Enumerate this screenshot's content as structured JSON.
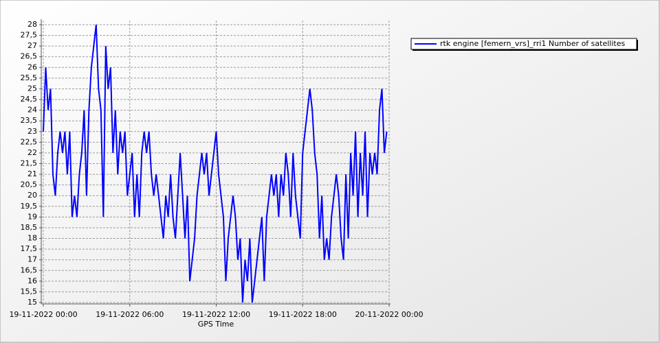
{
  "chart_data": {
    "type": "line",
    "xlabel": "GPS Time",
    "grid": true,
    "legend": "right",
    "xlim": [
      "19-11-2022 00:00",
      "20-11-2022 00:00"
    ],
    "xticks": [
      "19-11-2022 00:00",
      "19-11-2022 06:00",
      "19-11-2022 12:00",
      "19-11-2022 18:00",
      "20-11-2022 00:00"
    ],
    "ylim": [
      15,
      28
    ],
    "yticks": [
      15,
      {
        "value": 15.5,
        "label": "15,5"
      },
      16,
      {
        "value": 16.5,
        "label": "16,5"
      },
      17,
      {
        "value": 17.5,
        "label": "17,5"
      },
      18,
      {
        "value": 18.5,
        "label": "18,5"
      },
      19,
      {
        "value": 19.5,
        "label": "19,5"
      },
      20,
      {
        "value": 20.5,
        "label": "20,5"
      },
      21,
      {
        "value": 21.5,
        "label": "21,5"
      },
      22,
      {
        "value": 22.5,
        "label": "22,5"
      },
      23,
      {
        "value": 23.5,
        "label": "23,5"
      },
      24,
      {
        "value": 24.5,
        "label": "24,5"
      },
      25,
      {
        "value": 25.5,
        "label": "25,5"
      },
      26,
      {
        "value": 26.5,
        "label": "26,5"
      },
      27,
      {
        "value": 27.5,
        "label": "27,5"
      },
      28
    ],
    "x": [
      "19-11-2022 00:00",
      "19-11-2022 00:10",
      "19-11-2022 00:20",
      "19-11-2022 00:30",
      "19-11-2022 00:40",
      "19-11-2022 00:50",
      "19-11-2022 01:00",
      "19-11-2022 01:10",
      "19-11-2022 01:20",
      "19-11-2022 01:30",
      "19-11-2022 01:40",
      "19-11-2022 01:50",
      "19-11-2022 02:00",
      "19-11-2022 02:10",
      "19-11-2022 02:20",
      "19-11-2022 02:30",
      "19-11-2022 02:40",
      "19-11-2022 02:50",
      "19-11-2022 03:00",
      "19-11-2022 03:10",
      "19-11-2022 03:20",
      "19-11-2022 03:30",
      "19-11-2022 03:40",
      "19-11-2022 03:50",
      "19-11-2022 04:00",
      "19-11-2022 04:10",
      "19-11-2022 04:20",
      "19-11-2022 04:30",
      "19-11-2022 04:40",
      "19-11-2022 04:50",
      "19-11-2022 05:00",
      "19-11-2022 05:10",
      "19-11-2022 05:20",
      "19-11-2022 05:30",
      "19-11-2022 05:40",
      "19-11-2022 05:50",
      "19-11-2022 06:00",
      "19-11-2022 06:10",
      "19-11-2022 06:20",
      "19-11-2022 06:30",
      "19-11-2022 06:40",
      "19-11-2022 06:50",
      "19-11-2022 07:00",
      "19-11-2022 07:10",
      "19-11-2022 07:20",
      "19-11-2022 07:30",
      "19-11-2022 07:40",
      "19-11-2022 07:50",
      "19-11-2022 08:00",
      "19-11-2022 08:10",
      "19-11-2022 08:20",
      "19-11-2022 08:30",
      "19-11-2022 08:40",
      "19-11-2022 08:50",
      "19-11-2022 09:00",
      "19-11-2022 09:10",
      "19-11-2022 09:20",
      "19-11-2022 09:30",
      "19-11-2022 09:40",
      "19-11-2022 09:50",
      "19-11-2022 10:00",
      "19-11-2022 10:10",
      "19-11-2022 10:20",
      "19-11-2022 10:30",
      "19-11-2022 10:40",
      "19-11-2022 10:50",
      "19-11-2022 11:00",
      "19-11-2022 11:10",
      "19-11-2022 11:20",
      "19-11-2022 11:30",
      "19-11-2022 11:40",
      "19-11-2022 11:50",
      "19-11-2022 12:00",
      "19-11-2022 12:10",
      "19-11-2022 12:20",
      "19-11-2022 12:30",
      "19-11-2022 12:40",
      "19-11-2022 12:50",
      "19-11-2022 13:00",
      "19-11-2022 13:10",
      "19-11-2022 13:20",
      "19-11-2022 13:30",
      "19-11-2022 13:40",
      "19-11-2022 13:50",
      "19-11-2022 14:00",
      "19-11-2022 14:10",
      "19-11-2022 14:20",
      "19-11-2022 14:30",
      "19-11-2022 14:40",
      "19-11-2022 14:50",
      "19-11-2022 15:00",
      "19-11-2022 15:10",
      "19-11-2022 15:20",
      "19-11-2022 15:30",
      "19-11-2022 15:40",
      "19-11-2022 15:50",
      "19-11-2022 16:00",
      "19-11-2022 16:10",
      "19-11-2022 16:20",
      "19-11-2022 16:30",
      "19-11-2022 16:40",
      "19-11-2022 16:50",
      "19-11-2022 17:00",
      "19-11-2022 17:10",
      "19-11-2022 17:20",
      "19-11-2022 17:30",
      "19-11-2022 17:40",
      "19-11-2022 17:50",
      "19-11-2022 18:00",
      "19-11-2022 18:10",
      "19-11-2022 18:20",
      "19-11-2022 18:30",
      "19-11-2022 18:40",
      "19-11-2022 18:50",
      "19-11-2022 19:00",
      "19-11-2022 19:10",
      "19-11-2022 19:20",
      "19-11-2022 19:30",
      "19-11-2022 19:40",
      "19-11-2022 19:50",
      "19-11-2022 20:00",
      "19-11-2022 20:10",
      "19-11-2022 20:20",
      "19-11-2022 20:30",
      "19-11-2022 20:40",
      "19-11-2022 20:50",
      "19-11-2022 21:00",
      "19-11-2022 21:10",
      "19-11-2022 21:20",
      "19-11-2022 21:30",
      "19-11-2022 21:40",
      "19-11-2022 21:50",
      "19-11-2022 22:00",
      "19-11-2022 22:10",
      "19-11-2022 22:20",
      "19-11-2022 22:30",
      "19-11-2022 22:40",
      "19-11-2022 22:50",
      "19-11-2022 23:00",
      "19-11-2022 23:10",
      "19-11-2022 23:20",
      "19-11-2022 23:30",
      "19-11-2022 23:40",
      "19-11-2022 23:50"
    ],
    "series": [
      {
        "name": "rtk engine [femern_vrs]_rri1 Number of satellites",
        "color": "#0000ff",
        "values": [
          23,
          26,
          24,
          25,
          21,
          20,
          22,
          23,
          22,
          23,
          21,
          23,
          19,
          20,
          19,
          21,
          22,
          24,
          20,
          24,
          26,
          27,
          28,
          25,
          24,
          19,
          27,
          25,
          26,
          22,
          24,
          21,
          23,
          22,
          23,
          20,
          21,
          22,
          19,
          21,
          19,
          22,
          23,
          22,
          23,
          21,
          20,
          21,
          20,
          19,
          18,
          20,
          19,
          21,
          19,
          18,
          20,
          22,
          20,
          18,
          20,
          16,
          17,
          18,
          20,
          21,
          22,
          21,
          22,
          20,
          21,
          22,
          23,
          21,
          20,
          19,
          16,
          18,
          19,
          20,
          19,
          17,
          18,
          15,
          17,
          16,
          18,
          15,
          16,
          17,
          18,
          19,
          16,
          19,
          20,
          21,
          20,
          21,
          19,
          21,
          20,
          22,
          21,
          19,
          22,
          20,
          19,
          18,
          22,
          23,
          24,
          25,
          24,
          22,
          21,
          18,
          20,
          17,
          18,
          17,
          19,
          20,
          21,
          20,
          18,
          17,
          21,
          18,
          22,
          20,
          23,
          19,
          22,
          20,
          23,
          19,
          22,
          21,
          22,
          21,
          24,
          25,
          22,
          23
        ]
      }
    ]
  }
}
